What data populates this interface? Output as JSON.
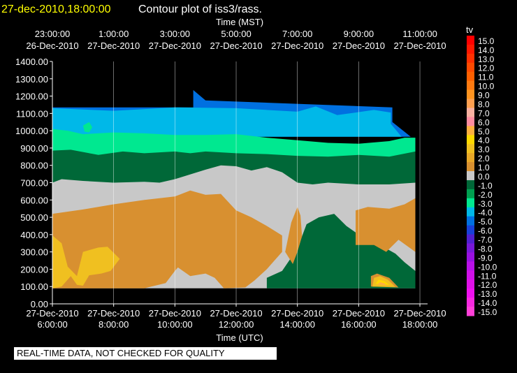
{
  "chart_data": {
    "type": "heatmap",
    "title_time": "27-dec-2010,18:00:00",
    "title": "Contour plot of iss3/rass.",
    "top_axis_label": "Time (MST)",
    "xlabel": "Time (UTC)",
    "xlim_utc_hours": [
      6,
      18.25
    ],
    "ylim": [
      0,
      1400
    ],
    "y_ticks": [
      "0.00",
      "100.00",
      "200.00",
      "300.00",
      "400.00",
      "500.00",
      "600.00",
      "700.00",
      "800.00",
      "900.00",
      "1000.00",
      "1100.00",
      "1200.00",
      "1300.00",
      "1400.00"
    ],
    "bottom_ticks": [
      {
        "t": 6,
        "time": "6:00:00",
        "date": "27-Dec-2010"
      },
      {
        "t": 8,
        "time": "8:00:00",
        "date": "27-Dec-2010"
      },
      {
        "t": 10,
        "time": "10:00:00",
        "date": "27-Dec-2010"
      },
      {
        "t": 12,
        "time": "12:00:00",
        "date": "27-Dec-2010"
      },
      {
        "t": 14,
        "time": "14:00:00",
        "date": "27-Dec-2010"
      },
      {
        "t": 16,
        "time": "16:00:00",
        "date": "27-Dec-2010"
      },
      {
        "t": 18,
        "time": "18:00:00",
        "date": "27-Dec-2010"
      }
    ],
    "top_ticks": [
      {
        "t": 6,
        "time": "23:00:00",
        "date": "26-Dec-2010"
      },
      {
        "t": 8,
        "time": "1:00:00",
        "date": "27-Dec-2010"
      },
      {
        "t": 10,
        "time": "3:00:00",
        "date": "27-Dec-2010"
      },
      {
        "t": 12,
        "time": "5:00:00",
        "date": "27-Dec-2010"
      },
      {
        "t": 14,
        "time": "7:00:00",
        "date": "27-Dec-2010"
      },
      {
        "t": 16,
        "time": "9:00:00",
        "date": "27-Dec-2010"
      },
      {
        "t": 18,
        "time": "11:00:00",
        "date": "27-Dec-2010"
      }
    ],
    "grid": true,
    "colorbar": {
      "label": "tv",
      "levels": [
        {
          "v": "15.0",
          "c": "#ff0000"
        },
        {
          "v": "14.0",
          "c": "#ff1800"
        },
        {
          "v": "13.0",
          "c": "#ff3000"
        },
        {
          "v": "12.0",
          "c": "#ff4a00"
        },
        {
          "v": "11.0",
          "c": "#ff6000"
        },
        {
          "v": "10.0",
          "c": "#ff7a10"
        },
        {
          "v": "9.0",
          "c": "#ff9420"
        },
        {
          "v": "8.0",
          "c": "#ffa050"
        },
        {
          "v": "7.0",
          "c": "#f8b0a0"
        },
        {
          "v": "6.0",
          "c": "#ff8ca0"
        },
        {
          "v": "5.0",
          "c": "#ffb040"
        },
        {
          "v": "4.0",
          "c": "#ffd800"
        },
        {
          "v": "3.0",
          "c": "#f0c020"
        },
        {
          "v": "2.0",
          "c": "#e8a828"
        },
        {
          "v": "1.0",
          "c": "#d89030"
        },
        {
          "v": "0.0",
          "c": "#c8c8c8"
        },
        {
          "v": "-1.0",
          "c": "#006838"
        },
        {
          "v": "-2.0",
          "c": "#00a050"
        },
        {
          "v": "-3.0",
          "c": "#00e890"
        },
        {
          "v": "-4.0",
          "c": "#00b8e8"
        },
        {
          "v": "-5.0",
          "c": "#0070e0"
        },
        {
          "v": "-6.0",
          "c": "#1840d8"
        },
        {
          "v": "-7.0",
          "c": "#5020d0"
        },
        {
          "v": "-8.0",
          "c": "#7818d8"
        },
        {
          "v": "-9.0",
          "c": "#9810e0"
        },
        {
          "v": "-10.0",
          "c": "#b810e8"
        },
        {
          "v": "-11.0",
          "c": "#d010e8"
        },
        {
          "v": "-12.0",
          "c": "#e010e8"
        },
        {
          "v": "-13.0",
          "c": "#f010f0"
        },
        {
          "v": "-14.0",
          "c": "#f828e0"
        },
        {
          "v": "-15.0",
          "c": "#ff40d8"
        }
      ]
    },
    "regions": [
      {
        "level": "-5.0",
        "c": "#0070e0",
        "pts": [
          [
            6,
            1135
          ],
          [
            10.6,
            1135
          ],
          [
            10.6,
            1235
          ],
          [
            11,
            1175
          ],
          [
            17.1,
            1135
          ],
          [
            17.1,
            1050
          ],
          [
            17.7,
            965
          ],
          [
            6,
            965
          ]
        ]
      },
      {
        "level": "-4.0",
        "c": "#00b8e8",
        "pts": [
          [
            6,
            1130
          ],
          [
            8,
            1115
          ],
          [
            10,
            1135
          ],
          [
            12,
            1130
          ],
          [
            14,
            1110
          ],
          [
            14.6,
            1140
          ],
          [
            15.3,
            1090
          ],
          [
            16.5,
            1120
          ],
          [
            17.05,
            1105
          ],
          [
            17.05,
            1040
          ],
          [
            17.4,
            965
          ],
          [
            6,
            965
          ]
        ]
      },
      {
        "level": "-3.0",
        "c": "#00e890",
        "pts": [
          [
            6,
            1010
          ],
          [
            6.5,
            1000
          ],
          [
            7,
            980
          ],
          [
            8,
            990
          ],
          [
            9,
            985
          ],
          [
            10,
            975
          ],
          [
            11,
            975
          ],
          [
            12,
            980
          ],
          [
            13,
            960
          ],
          [
            14,
            945
          ],
          [
            15,
            930
          ],
          [
            16,
            925
          ],
          [
            17,
            940
          ],
          [
            17.5,
            960
          ],
          [
            17.85,
            960
          ],
          [
            17.85,
            800
          ],
          [
            6,
            800
          ]
        ]
      },
      {
        "level": "-1.0",
        "c": "#006838",
        "pts": [
          [
            6,
            885
          ],
          [
            6.6,
            890
          ],
          [
            7.5,
            860
          ],
          [
            8.3,
            880
          ],
          [
            9,
            870
          ],
          [
            10,
            880
          ],
          [
            10.5,
            870
          ],
          [
            11,
            880
          ],
          [
            12,
            870
          ],
          [
            13,
            865
          ],
          [
            14,
            855
          ],
          [
            15,
            850
          ],
          [
            16,
            860
          ],
          [
            17,
            850
          ],
          [
            17.85,
            880
          ],
          [
            17.85,
            560
          ],
          [
            6,
            560
          ]
        ]
      },
      {
        "level": "0.0",
        "c": "#c8c8c8",
        "pts": [
          [
            6,
            700
          ],
          [
            6.3,
            720
          ],
          [
            7,
            710
          ],
          [
            8,
            700
          ],
          [
            9,
            705
          ],
          [
            9.5,
            700
          ],
          [
            10,
            720
          ],
          [
            11,
            775
          ],
          [
            11.5,
            800
          ],
          [
            12,
            795
          ],
          [
            12.5,
            770
          ],
          [
            13,
            790
          ],
          [
            13.5,
            760
          ],
          [
            14,
            700
          ],
          [
            14.5,
            690
          ],
          [
            15,
            700
          ],
          [
            16,
            690
          ],
          [
            17,
            690
          ],
          [
            17.85,
            700
          ],
          [
            17.85,
            90
          ],
          [
            6,
            90
          ]
        ]
      },
      {
        "level": "-1.0",
        "c": "#006838",
        "pts": [
          [
            13,
            95
          ],
          [
            13,
            150
          ],
          [
            13.5,
            190
          ],
          [
            14,
            320
          ],
          [
            14.3,
            460
          ],
          [
            14.7,
            500
          ],
          [
            15.2,
            520
          ],
          [
            15.6,
            450
          ],
          [
            16,
            400
          ],
          [
            16.4,
            360
          ],
          [
            16.8,
            330
          ],
          [
            17.2,
            290
          ],
          [
            17.5,
            240
          ],
          [
            17.85,
            190
          ],
          [
            17.85,
            90
          ],
          [
            13,
            90
          ]
        ]
      },
      {
        "level": "1.0",
        "c": "#d89030",
        "pts": [
          [
            6,
            520
          ],
          [
            7,
            545
          ],
          [
            8,
            575
          ],
          [
            9,
            600
          ],
          [
            10,
            620
          ],
          [
            10.5,
            655
          ],
          [
            11,
            630
          ],
          [
            11.5,
            635
          ],
          [
            12,
            540
          ],
          [
            12.5,
            500
          ],
          [
            13,
            450
          ],
          [
            13.5,
            395
          ],
          [
            13.5,
            300
          ],
          [
            13.2,
            240
          ],
          [
            13,
            200
          ],
          [
            12.6,
            135
          ],
          [
            12.3,
            95
          ],
          [
            11.6,
            90
          ],
          [
            11.3,
            150
          ],
          [
            11,
            175
          ],
          [
            10.5,
            160
          ],
          [
            10.1,
            210
          ],
          [
            10,
            190
          ],
          [
            9.7,
            120
          ],
          [
            9,
            90
          ],
          [
            6,
            90
          ]
        ]
      },
      {
        "level": "1.0",
        "c": "#d89030",
        "pts": [
          [
            13.6,
            300
          ],
          [
            13.8,
            470
          ],
          [
            14,
            560
          ],
          [
            14.1,
            510
          ],
          [
            14.15,
            390
          ],
          [
            14,
            300
          ],
          [
            13.85,
            230
          ]
        ]
      },
      {
        "level": "1.0",
        "c": "#d89030",
        "pts": [
          [
            15.9,
            340
          ],
          [
            15.9,
            540
          ],
          [
            16.3,
            560
          ],
          [
            17,
            550
          ],
          [
            17.5,
            575
          ],
          [
            17.85,
            610
          ],
          [
            17.85,
            300
          ],
          [
            17.3,
            370
          ],
          [
            16.9,
            300
          ],
          [
            16.5,
            340
          ]
        ]
      },
      {
        "level": "3.0",
        "c": "#f0c020",
        "pts": [
          [
            6,
            395
          ],
          [
            6.3,
            350
          ],
          [
            6.5,
            215
          ],
          [
            6.8,
            160
          ],
          [
            7,
            300
          ],
          [
            7.5,
            325
          ],
          [
            7.8,
            330
          ],
          [
            8.2,
            260
          ],
          [
            7.9,
            190
          ],
          [
            7.6,
            175
          ],
          [
            7.2,
            165
          ],
          [
            7,
            105
          ],
          [
            6.8,
            110
          ],
          [
            6.6,
            160
          ],
          [
            6.3,
            100
          ],
          [
            6,
            90
          ]
        ]
      },
      {
        "level": "1.0",
        "c": "#d89030",
        "pts": [
          [
            16.4,
            100
          ],
          [
            16.4,
            160
          ],
          [
            16.6,
            175
          ],
          [
            17.0,
            150
          ],
          [
            17.3,
            95
          ]
        ]
      },
      {
        "level": "3.0",
        "c": "#f0c020",
        "pts": [
          [
            16.45,
            100
          ],
          [
            16.5,
            150
          ],
          [
            16.7,
            160
          ],
          [
            16.95,
            140
          ],
          [
            17.2,
            98
          ]
        ]
      },
      {
        "level": "4.0",
        "c": "#ffd800",
        "pts": [
          [
            16.55,
            115
          ],
          [
            16.65,
            140
          ],
          [
            16.85,
            130
          ],
          [
            17.0,
            110
          ]
        ]
      },
      {
        "level": "5.0",
        "c": "#ffb040",
        "pts": [
          [
            16.6,
            112
          ],
          [
            16.7,
            125
          ],
          [
            16.85,
            118
          ],
          [
            16.9,
            108
          ]
        ]
      },
      {
        "level": "-3.0",
        "c": "#00e890",
        "pts": [
          [
            7.0,
            1030
          ],
          [
            7.2,
            1050
          ],
          [
            7.3,
            1020
          ],
          [
            7.2,
            990
          ],
          [
            7.05,
            995
          ]
        ]
      }
    ]
  },
  "notice": "REAL-TIME DATA, NOT CHECKED FOR QUALITY"
}
